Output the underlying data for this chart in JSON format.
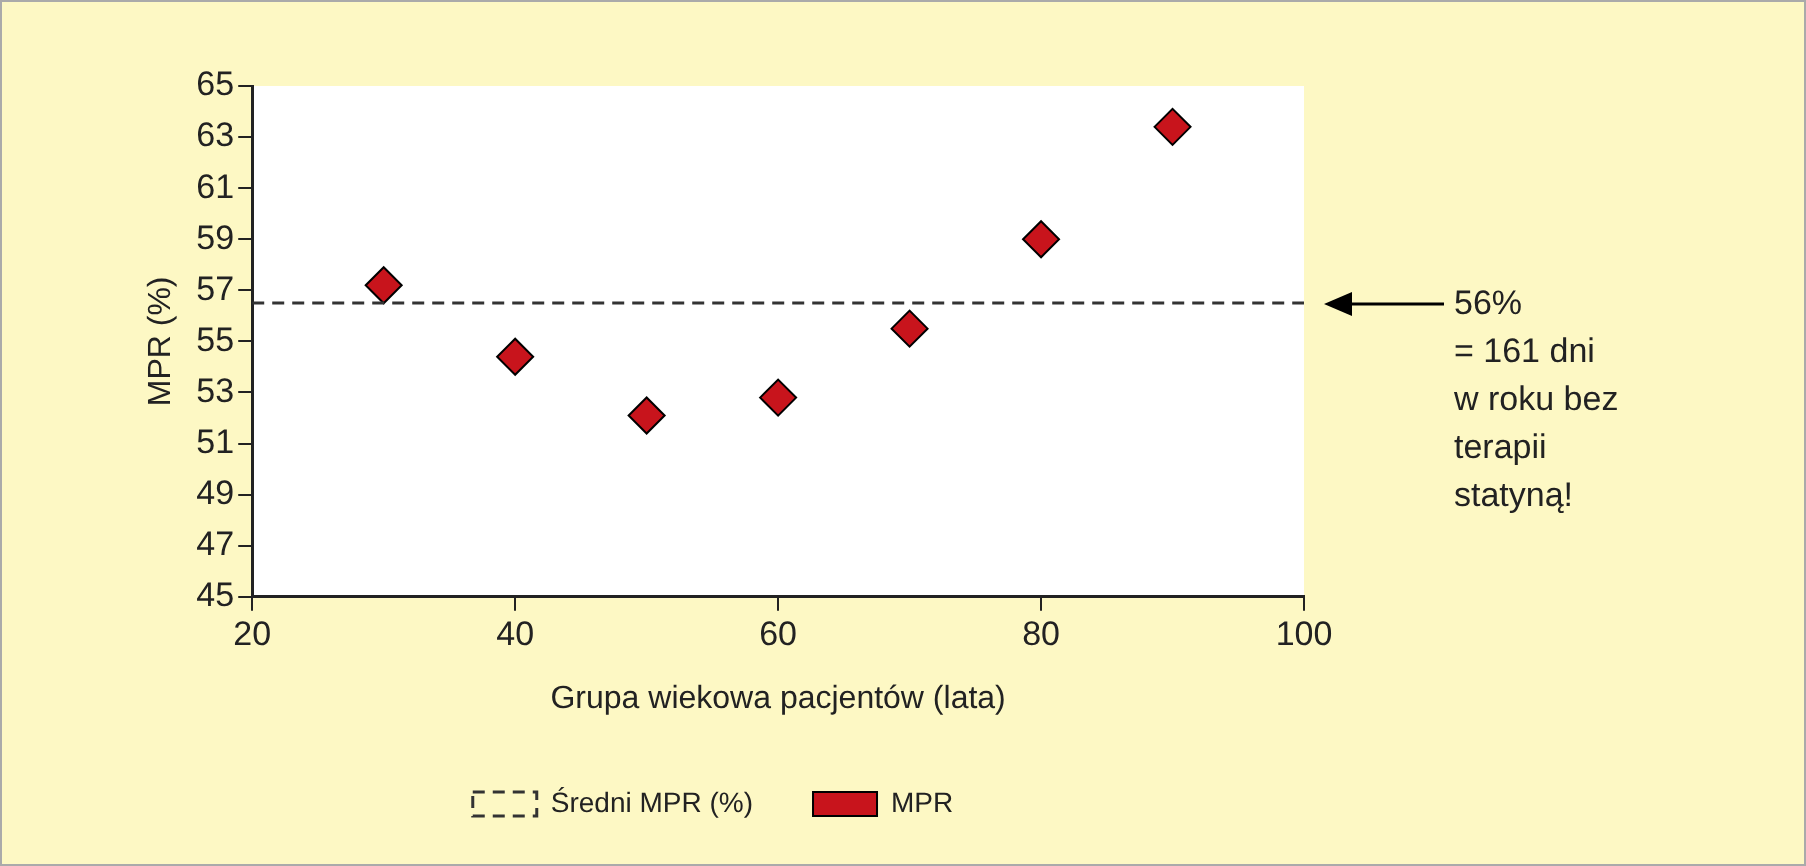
{
  "chart_data": {
    "type": "scatter",
    "xlabel": "Grupa wiekowa pacjentów (lata)",
    "ylabel": "MPR (%)",
    "x": [
      30,
      40,
      50,
      60,
      70,
      80,
      90
    ],
    "series": [
      {
        "name": "MPR",
        "color": "#c8141c",
        "values": [
          57.2,
          54.4,
          52.1,
          52.8,
          55.5,
          59.0,
          63.4
        ]
      }
    ],
    "xlim": [
      20,
      100
    ],
    "xticks": [
      20,
      40,
      60,
      80,
      100
    ],
    "ylim": [
      45,
      65
    ],
    "yticks": [
      45,
      47,
      49,
      51,
      53,
      55,
      57,
      59,
      61,
      63,
      65
    ],
    "ref_lines": [
      {
        "axis": "y",
        "value": 56.5,
        "label": "Średni MPR (%)",
        "color": "#333333",
        "line_style": "dashed"
      }
    ],
    "annotations": [
      "56%\n= 161 dni\nw roku bez\nterapii\nstatyną!"
    ],
    "marker": "diamond",
    "grid": false,
    "legend": "bottom"
  }
}
